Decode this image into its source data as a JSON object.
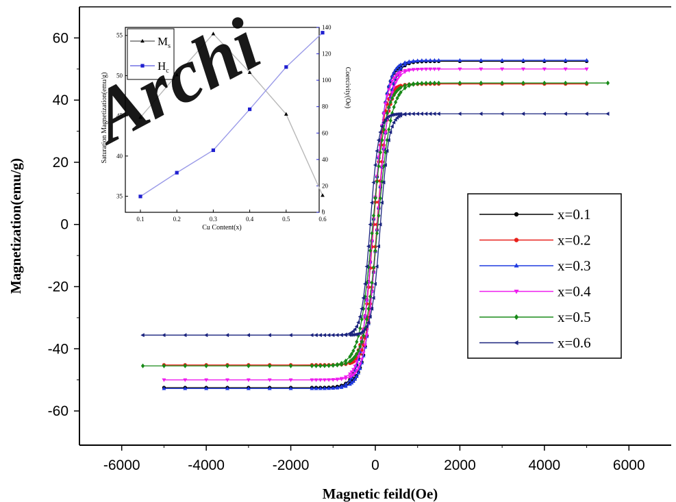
{
  "watermark": "Archi",
  "chart_data": [
    {
      "type": "line",
      "title": "",
      "xlabel": "Magnetic feild(Oe)",
      "ylabel": "Magnetization(emu/g)",
      "xlim": [
        -7000,
        7000
      ],
      "ylim": [
        -71,
        70
      ],
      "xticks": [
        -6000,
        -4000,
        -2000,
        0,
        2000,
        4000,
        6000
      ],
      "yticks": [
        -60,
        -40,
        -20,
        0,
        20,
        40,
        60
      ],
      "legend_position": "lower-right",
      "series": [
        {
          "name": "x=0.1",
          "color": "#000000",
          "marker": "circle",
          "Ms": 52.5,
          "xmax": 5000,
          "shape": 300,
          "hyst": 50
        },
        {
          "name": "x=0.2",
          "color": "#e8201a",
          "marker": "circle",
          "Ms": 45.2,
          "xmax": 5000,
          "shape": 250,
          "hyst": 40
        },
        {
          "name": "x=0.3",
          "color": "#1f3ae0",
          "marker": "triangle-up",
          "Ms": 52.8,
          "xmax": 5000,
          "shape": 300,
          "hyst": 50
        },
        {
          "name": "x=0.4",
          "color": "#ee1cee",
          "marker": "triangle-down",
          "Ms": 50.0,
          "xmax": 5000,
          "shape": 280,
          "hyst": 50
        },
        {
          "name": "x=0.5",
          "color": "#188a18",
          "marker": "diamond",
          "Ms": 45.5,
          "xmax": 5500,
          "shape": 320,
          "hyst": 60
        },
        {
          "name": "x=0.6",
          "color": "#1a237e",
          "marker": "triangle-left",
          "Ms": 35.6,
          "xmax": 5500,
          "shape": 200,
          "hyst": 120
        }
      ]
    },
    {
      "type": "line",
      "title": "",
      "xlabel": "Cu Content(x)",
      "ylabel": "Saturation Magnetization(emu/g)",
      "ylabel_right": "Coercivity(Oe)",
      "x": [
        0.1,
        0.2,
        0.3,
        0.4,
        0.5,
        0.6
      ],
      "xticks": [
        "0.1",
        "0.2",
        "0.3",
        "0.4",
        "0.5",
        "0.6"
      ],
      "ylim": [
        33,
        56
      ],
      "yticks": [
        35,
        40,
        45,
        50,
        55
      ],
      "ylim_right": [
        0,
        140
      ],
      "yticks_right": [
        0,
        20,
        40,
        60,
        80,
        100,
        120,
        140
      ],
      "legend_position": "top-left",
      "series": [
        {
          "name": "M",
          "subscript": "s",
          "axis": "left",
          "color": "#000000",
          "marker": "triangle-up",
          "values": [
            44.8,
            50.1,
            55.2,
            50.4,
            45.2,
            35.1
          ]
        },
        {
          "name": "H",
          "subscript": "c",
          "axis": "right",
          "color": "#2020d0",
          "marker": "square",
          "values": [
            12,
            30,
            47,
            78,
            110,
            136
          ]
        }
      ]
    }
  ]
}
